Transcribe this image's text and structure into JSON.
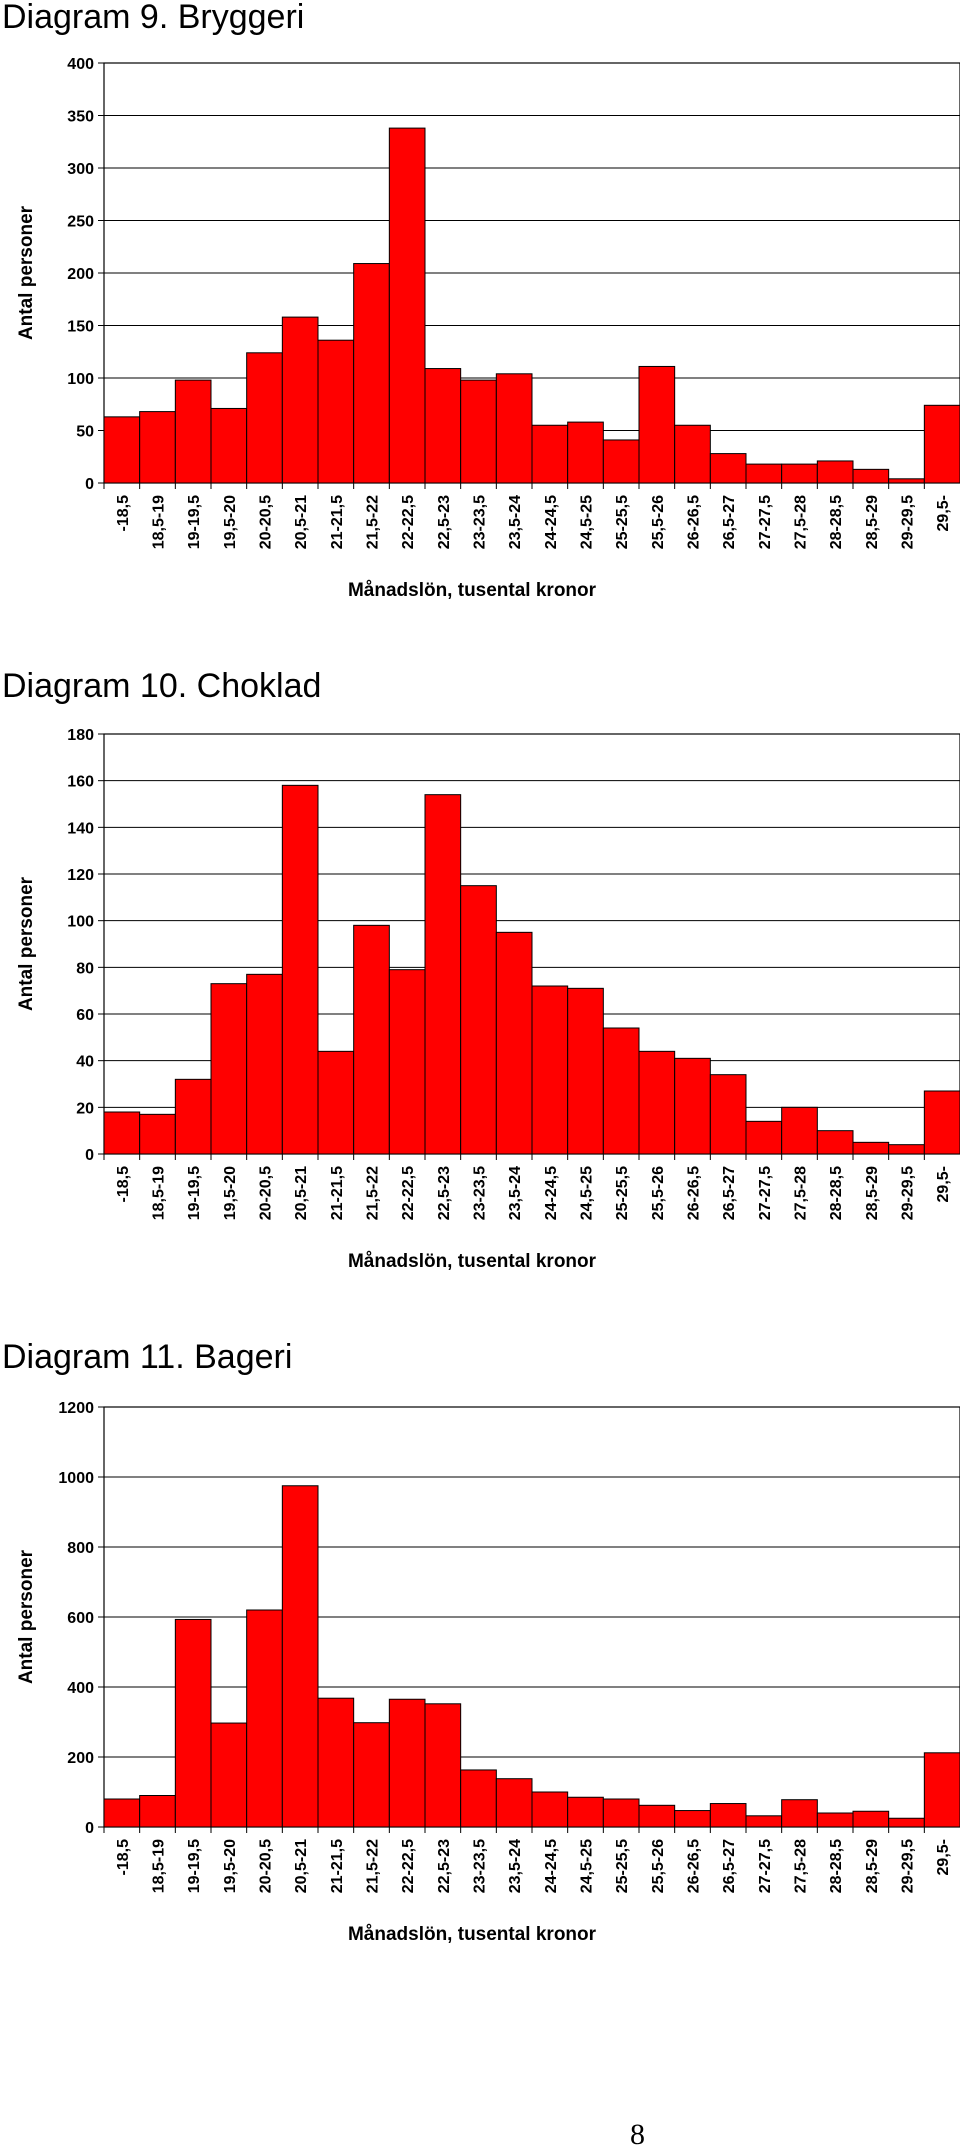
{
  "page": {
    "number": "8"
  },
  "chart_data": [
    {
      "type": "bar",
      "title": "Diagram 9. Bryggeri",
      "xlabel": "Månadslön, tusental kronor",
      "ylabel": "Antal personer",
      "ylim": [
        0,
        400
      ],
      "yticks": [
        0,
        50,
        100,
        150,
        200,
        250,
        300,
        350,
        400
      ],
      "grid": true,
      "legend": "none",
      "bar_color": "#ff0000",
      "categories": [
        "-18,5",
        "18,5-19",
        "19-19,5",
        "19,5-20",
        "20-20,5",
        "20,5-21",
        "21-21,5",
        "21,5-22",
        "22-22,5",
        "22,5-23",
        "23-23,5",
        "23,5-24",
        "24-24,5",
        "24,5-25",
        "25-25,5",
        "25,5-26",
        "26-26,5",
        "26,5-27",
        "27-27,5",
        "27,5-28",
        "28-28,5",
        "28,5-29",
        "29-29,5",
        "29,5-"
      ],
      "values": [
        63,
        68,
        98,
        71,
        124,
        158,
        136,
        209,
        338,
        109,
        98,
        104,
        55,
        58,
        41,
        111,
        55,
        28,
        18,
        18,
        21,
        13,
        4,
        74
      ]
    },
    {
      "type": "bar",
      "title": "Diagram 10. Choklad",
      "xlabel": "Månadslön, tusental kronor",
      "ylabel": "Antal personer",
      "ylim": [
        0,
        180
      ],
      "yticks": [
        0,
        20,
        40,
        60,
        80,
        100,
        120,
        140,
        160,
        180
      ],
      "grid": true,
      "legend": "none",
      "bar_color": "#ff0000",
      "categories": [
        "-18,5",
        "18,5-19",
        "19-19,5",
        "19,5-20",
        "20-20,5",
        "20,5-21",
        "21-21,5",
        "21,5-22",
        "22-22,5",
        "22,5-23",
        "23-23,5",
        "23,5-24",
        "24-24,5",
        "24,5-25",
        "25-25,5",
        "25,5-26",
        "26-26,5",
        "26,5-27",
        "27-27,5",
        "27,5-28",
        "28-28,5",
        "28,5-29",
        "29-29,5",
        "29,5-"
      ],
      "values": [
        18,
        17,
        32,
        73,
        77,
        158,
        44,
        98,
        79,
        154,
        115,
        95,
        72,
        71,
        54,
        44,
        41,
        34,
        14,
        20,
        10,
        5,
        4,
        27
      ]
    },
    {
      "type": "bar",
      "title": "Diagram 11. Bageri",
      "xlabel": "Månadslön, tusental kronor",
      "ylabel": "Antal personer",
      "ylim": [
        0,
        1200
      ],
      "yticks": [
        0,
        200,
        400,
        600,
        800,
        1000,
        1200
      ],
      "grid": true,
      "legend": "none",
      "bar_color": "#ff0000",
      "categories": [
        "-18,5",
        "18,5-19",
        "19-19,5",
        "19,5-20",
        "20-20,5",
        "20,5-21",
        "21-21,5",
        "21,5-22",
        "22-22,5",
        "22,5-23",
        "23-23,5",
        "23,5-24",
        "24-24,5",
        "24,5-25",
        "25-25,5",
        "25,5-26",
        "26-26,5",
        "26,5-27",
        "27-27,5",
        "27,5-28",
        "28-28,5",
        "28,5-29",
        "29-29,5",
        "29,5-"
      ],
      "values": [
        80,
        90,
        593,
        297,
        620,
        975,
        368,
        298,
        365,
        352,
        163,
        138,
        100,
        85,
        80,
        62,
        47,
        67,
        32,
        78,
        40,
        45,
        25,
        212
      ]
    }
  ]
}
